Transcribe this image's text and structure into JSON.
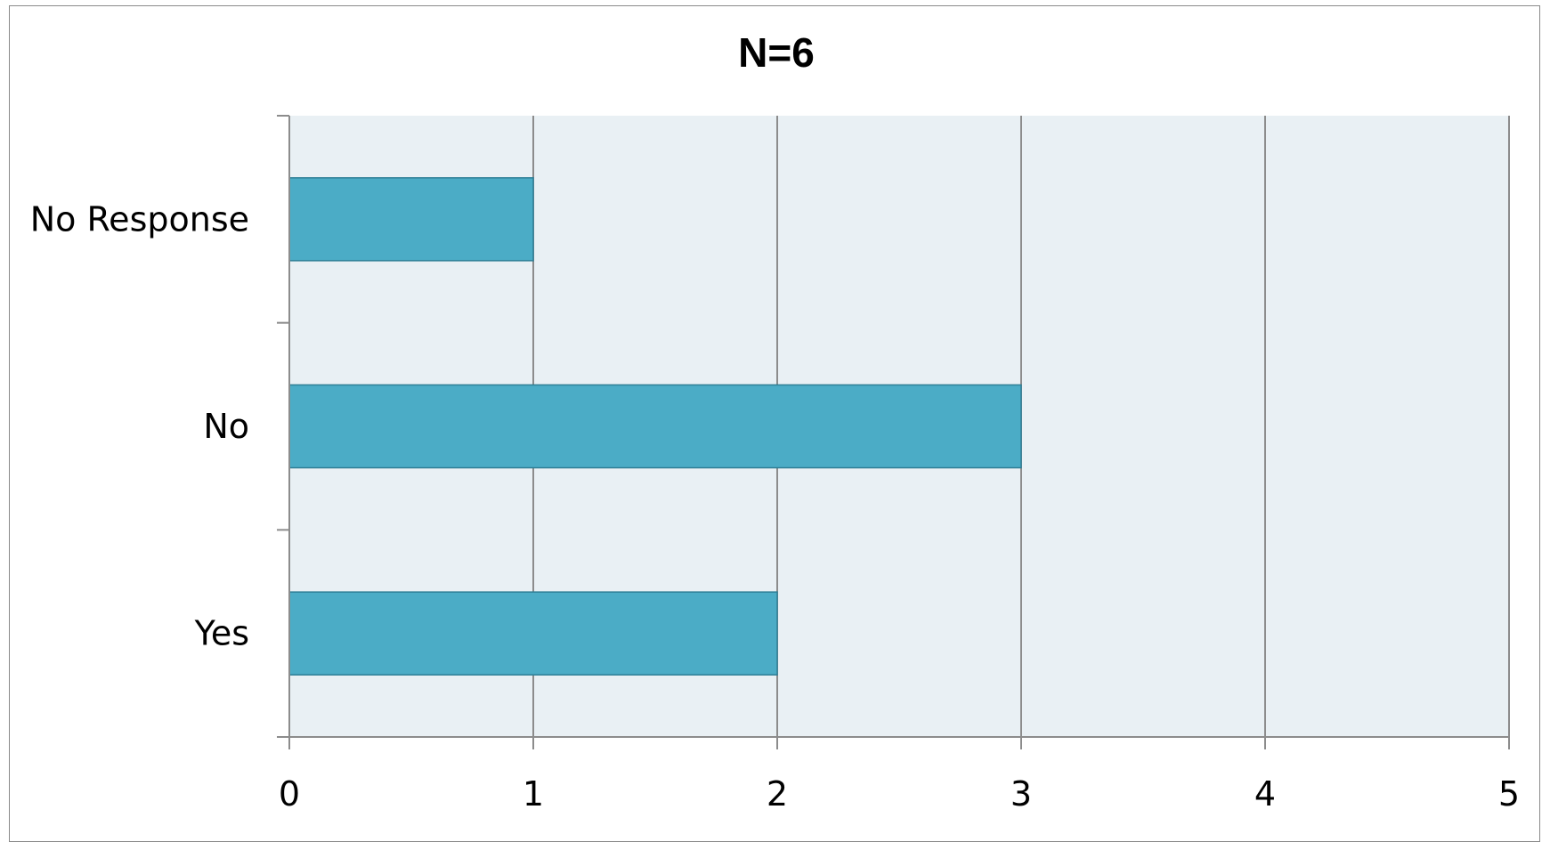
{
  "chart_data": {
    "type": "bar",
    "orientation": "horizontal",
    "title": "N=6",
    "categories": [
      "Yes",
      "No",
      "No Response"
    ],
    "values": [
      2,
      3,
      1
    ],
    "xlabel": "",
    "ylabel": "",
    "xlim": [
      0,
      5
    ],
    "x_ticks": [
      "0",
      "1",
      "2",
      "3",
      "4",
      "5"
    ],
    "grid": "vertical",
    "legend": "none",
    "colors": {
      "bar_fill": "#4bacc6",
      "bar_stroke": "#2e7f96",
      "plot_background": "#e9f0f4",
      "grid": "#8c8c8c",
      "axis": "#8c8c8c"
    }
  }
}
